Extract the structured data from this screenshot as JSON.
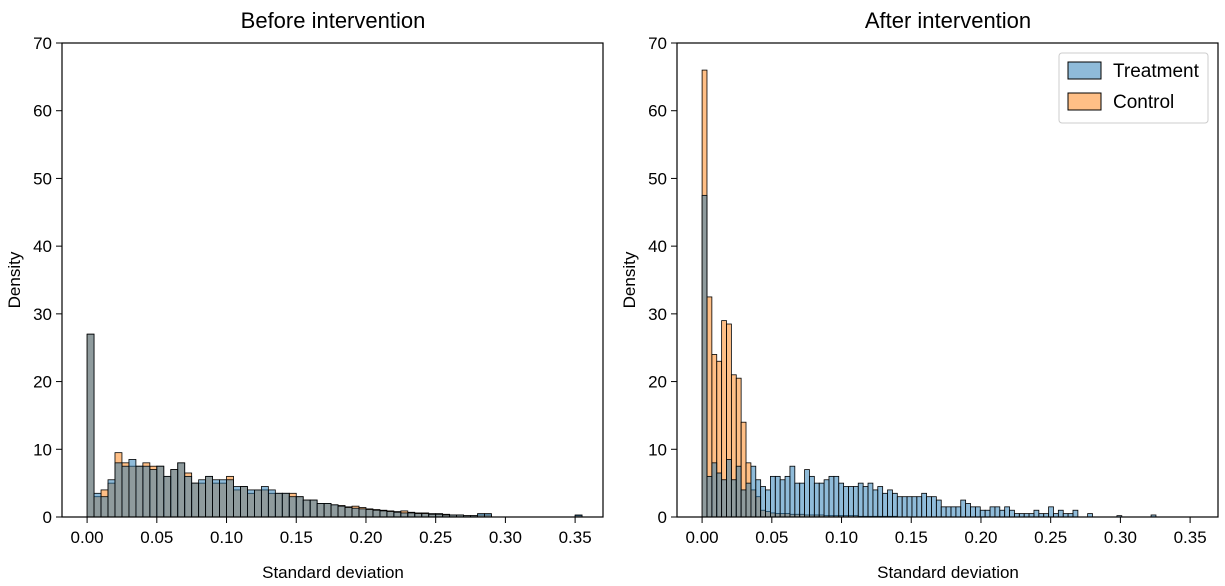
{
  "chart_data": [
    {
      "type": "histogram",
      "title": "Before intervention",
      "xlabel": "Standard deviation",
      "ylabel": "Density",
      "xlim": [
        -0.018,
        0.37
      ],
      "ylim": [
        0,
        70
      ],
      "xticks": [
        "0.00",
        "0.05",
        "0.10",
        "0.15",
        "0.20",
        "0.25",
        "0.30",
        "0.35"
      ],
      "yticks": [
        "0",
        "10",
        "20",
        "30",
        "40",
        "50",
        "60",
        "70"
      ],
      "bin_width": 0.005,
      "bin_start": 0.0,
      "grid": false,
      "series": [
        {
          "name": "Treatment",
          "color": "#1f77b4",
          "values": [
            27,
            3.5,
            3,
            5.5,
            8,
            7.5,
            8.5,
            7.5,
            7.5,
            7,
            7.5,
            6,
            7,
            8,
            6,
            5,
            5.5,
            6,
            5.5,
            5.5,
            5.5,
            4.5,
            4.5,
            4,
            4,
            4.5,
            4,
            3.5,
            3.5,
            3,
            3,
            2.5,
            2.5,
            2,
            2,
            1.8,
            1.6,
            1.4,
            1.3,
            1.2,
            1.1,
            1,
            0.9,
            0.8,
            0.7,
            0.6,
            0.6,
            0.5,
            0.5,
            0.4,
            0.4,
            0.3,
            0.3,
            0.3,
            0.2,
            0.2,
            0.5,
            0.5,
            0,
            0,
            0,
            0,
            0,
            0,
            0,
            0,
            0,
            0,
            0,
            0,
            0.3
          ]
        },
        {
          "name": "Control",
          "color": "#ff7f0e",
          "values": [
            27,
            3,
            4,
            5,
            9.5,
            8,
            7.5,
            7.5,
            8,
            7.5,
            7.5,
            6,
            7,
            8,
            6.5,
            5,
            5,
            6,
            5,
            5,
            6,
            4,
            4.5,
            3.5,
            4,
            4,
            3.5,
            3.5,
            3.5,
            3.5,
            3,
            2.5,
            2.5,
            2,
            2,
            1.8,
            1.7,
            1.5,
            1.6,
            1.4,
            1.2,
            1.1,
            1,
            0.9,
            0.8,
            0.9,
            0.7,
            0.6,
            0.6,
            0.5,
            0.5,
            0.4,
            0.3,
            0.3,
            0.2,
            0.2,
            0.3,
            0.3,
            0,
            0,
            0,
            0,
            0,
            0,
            0,
            0,
            0,
            0,
            0,
            0,
            0.2
          ]
        }
      ]
    },
    {
      "type": "histogram",
      "title": "After intervention",
      "xlabel": "Standard deviation",
      "ylabel": "Density",
      "xlim": [
        -0.018,
        0.37
      ],
      "ylim": [
        0,
        70
      ],
      "xticks": [
        "0.00",
        "0.05",
        "0.10",
        "0.15",
        "0.20",
        "0.25",
        "0.30",
        "0.35"
      ],
      "yticks": [
        "0",
        "10",
        "20",
        "30",
        "40",
        "50",
        "60",
        "70"
      ],
      "bin_width": 0.0035,
      "bin_start": 0.0,
      "grid": false,
      "legend": {
        "position": "top-right",
        "entries": [
          "Treatment",
          "Control"
        ]
      },
      "series": [
        {
          "name": "Treatment",
          "color": "#1f77b4",
          "values": [
            47.5,
            6,
            8,
            6.5,
            5.5,
            8.5,
            5.5,
            7.5,
            4,
            5,
            7.5,
            5.5,
            4.5,
            4,
            6,
            6,
            5.5,
            6,
            7.5,
            5,
            5,
            7,
            6,
            5,
            5,
            5.5,
            6,
            6,
            5,
            4.5,
            4.5,
            4.5,
            5,
            4.5,
            5,
            4,
            4.5,
            3.5,
            4,
            3.5,
            3,
            3,
            3,
            3,
            3,
            3.5,
            3,
            3,
            2.5,
            1.5,
            1.5,
            1.5,
            1.5,
            2.5,
            2,
            1.5,
            1.5,
            1,
            1,
            1.5,
            1.5,
            1,
            1.5,
            1,
            0.5,
            0.5,
            0.5,
            0.5,
            1,
            0.5,
            0.5,
            1.5,
            0.5,
            1,
            0.5,
            0.5,
            1,
            0,
            0,
            0.5,
            0,
            0,
            0,
            0,
            0,
            0.2,
            0,
            0,
            0,
            0,
            0,
            0,
            0.3
          ]
        },
        {
          "name": "Control",
          "color": "#ff7f0e",
          "values": [
            66,
            32.5,
            24,
            23,
            29,
            28.5,
            21,
            20.5,
            14,
            8,
            4,
            3,
            1,
            0.8,
            0.6,
            0.5,
            0.5,
            0.5,
            0.4,
            0.4,
            0.4,
            0.3,
            0.3,
            0.3,
            0.3,
            0.2,
            0.2,
            0.2,
            0.2,
            0.2,
            0.2,
            0.2,
            0.1,
            0.1,
            0.1,
            0.1,
            0.1,
            0.1,
            0.1,
            0.1
          ]
        }
      ]
    }
  ]
}
